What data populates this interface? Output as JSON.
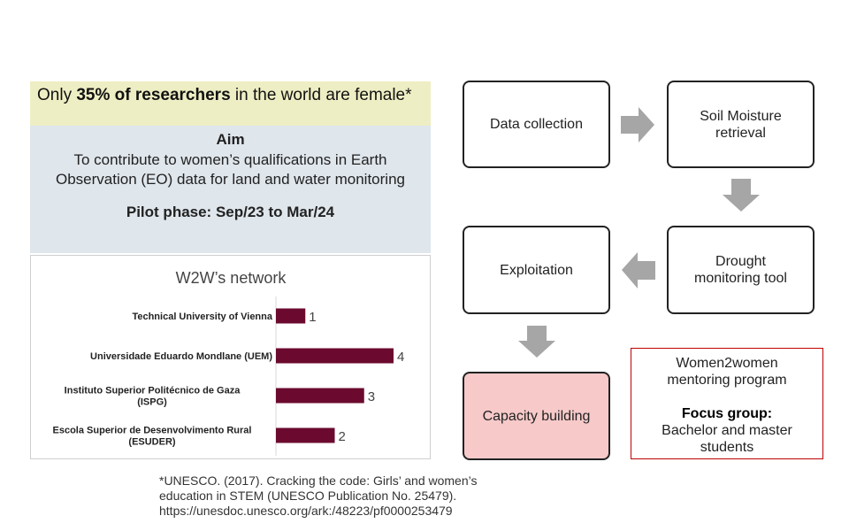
{
  "headline": {
    "prefix": "Only ",
    "highlight": "35% of researchers",
    "suffix": " in the world are female*"
  },
  "aim": {
    "title": "Aim",
    "text": "To contribute to women’s qualifications in Earth Observation (EO) data for land and water monitoring",
    "pilot": "Pilot phase: Sep/23 to Mar/24"
  },
  "flow": {
    "data_collection": "Data collection",
    "soil_moisture": "Soil Moisture retrieval",
    "drought_tool": "Drought monitoring tool",
    "exploitation": "Exploitation",
    "capacity_building": "Capacity building"
  },
  "mentoring": {
    "title": "Women2women mentoring program",
    "focus_label": "Focus group:",
    "focus_text": "Bachelor and master students"
  },
  "citation": {
    "line1": "*UNESCO. (2017). Cracking the code: Girls’ and women’s",
    "line2": "education in STEM (UNESCO Publication No. 25479).",
    "line3": "https://unesdoc.unesco.org/ark:/48223/pf0000253479"
  },
  "colors": {
    "bar": "#6b0a2e",
    "headline_bg": "#eeeec4",
    "aim_bg": "#dfe6ec",
    "arrow": "#a6a6a6",
    "capacity_bg": "#f7c9c9",
    "mentoring_border": "#c00000"
  },
  "chart_data": {
    "type": "bar",
    "orientation": "horizontal",
    "title": "W2W’s network",
    "categories": [
      [
        "Technical University of Vienna"
      ],
      [
        "Universidade Eduardo Mondlane (UEM)"
      ],
      [
        "Instituto Superior Politécnico de Gaza",
        "(ISPG)"
      ],
      [
        "Escola Superior de Desenvolvimento Rural",
        "(ESUDER)"
      ]
    ],
    "values": [
      1,
      4,
      3,
      2
    ],
    "xlim": [
      0,
      4
    ],
    "data_labels": true,
    "grid": false,
    "legend": "none"
  }
}
